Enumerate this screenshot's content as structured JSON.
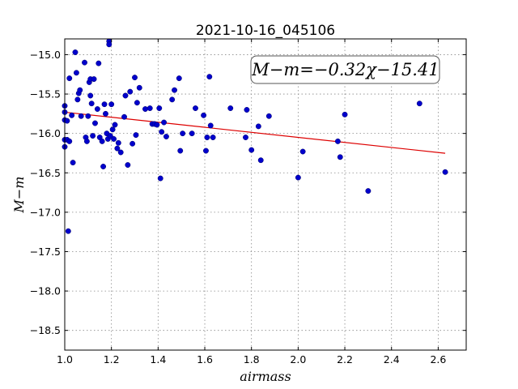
{
  "chart_data": {
    "type": "scatter",
    "title": "2021-10-16_045106",
    "xlabel": "airmass",
    "ylabel": "M−m",
    "xlim": [
      1.0,
      2.72
    ],
    "ylim": [
      -18.75,
      -14.8
    ],
    "y_inverted": true,
    "grid": true,
    "xticks": [
      1.0,
      1.2,
      1.4,
      1.6,
      1.8,
      2.0,
      2.2,
      2.4,
      2.6
    ],
    "xtick_labels": [
      "1.0",
      "1.2",
      "1.4",
      "1.6",
      "1.8",
      "2.0",
      "2.2",
      "2.4",
      "2.6"
    ],
    "yticks": [
      -15.0,
      -15.5,
      -16.0,
      -16.5,
      -17.0,
      -17.5,
      -18.0,
      -18.5
    ],
    "ytick_labels": [
      "−15.0",
      "−15.5",
      "−16.0",
      "−16.5",
      "−17.0",
      "−17.5",
      "−18.0",
      "−18.5"
    ],
    "annotation": "M−m=−0.32χ−15.41",
    "point_color": "#0000cc",
    "fit_color": "#dd0000",
    "fit": {
      "slope": -0.32,
      "intercept": -15.41,
      "x_range": [
        1.0,
        2.63
      ]
    },
    "points": [
      [
        1.0,
        -15.65
      ],
      [
        1.0,
        -15.73
      ],
      [
        1.0,
        -15.83
      ],
      [
        1.0,
        -16.08
      ],
      [
        1.0,
        -16.17
      ],
      [
        1.01,
        -15.84
      ],
      [
        1.01,
        -16.08
      ],
      [
        1.015,
        -17.24
      ],
      [
        1.02,
        -15.3
      ],
      [
        1.02,
        -16.1
      ],
      [
        1.03,
        -15.77
      ],
      [
        1.035,
        -16.37
      ],
      [
        1.045,
        -14.97
      ],
      [
        1.05,
        -15.23
      ],
      [
        1.055,
        -15.57
      ],
      [
        1.06,
        -15.49
      ],
      [
        1.065,
        -15.45
      ],
      [
        1.07,
        -15.78
      ],
      [
        1.085,
        -15.1
      ],
      [
        1.09,
        -16.05
      ],
      [
        1.095,
        -16.1
      ],
      [
        1.1,
        -15.78
      ],
      [
        1.105,
        -15.35
      ],
      [
        1.11,
        -15.31
      ],
      [
        1.11,
        -15.52
      ],
      [
        1.115,
        -15.62
      ],
      [
        1.12,
        -16.03
      ],
      [
        1.125,
        -15.31
      ],
      [
        1.13,
        -15.87
      ],
      [
        1.14,
        -15.69
      ],
      [
        1.145,
        -15.11
      ],
      [
        1.15,
        -16.05
      ],
      [
        1.16,
        -16.1
      ],
      [
        1.165,
        -16.42
      ],
      [
        1.17,
        -15.63
      ],
      [
        1.175,
        -15.75
      ],
      [
        1.18,
        -16.0
      ],
      [
        1.185,
        -16.07
      ],
      [
        1.19,
        -14.83
      ],
      [
        1.19,
        -14.87
      ],
      [
        1.195,
        -16.03
      ],
      [
        1.2,
        -15.63
      ],
      [
        1.205,
        -15.95
      ],
      [
        1.21,
        -16.07
      ],
      [
        1.215,
        -15.89
      ],
      [
        1.225,
        -16.19
      ],
      [
        1.23,
        -16.12
      ],
      [
        1.24,
        -16.24
      ],
      [
        1.255,
        -15.79
      ],
      [
        1.26,
        -15.52
      ],
      [
        1.27,
        -16.4
      ],
      [
        1.28,
        -15.47
      ],
      [
        1.29,
        -16.13
      ],
      [
        1.3,
        -15.29
      ],
      [
        1.305,
        -16.02
      ],
      [
        1.31,
        -15.61
      ],
      [
        1.32,
        -15.42
      ],
      [
        1.345,
        -15.69
      ],
      [
        1.365,
        -15.68
      ],
      [
        1.375,
        -15.88
      ],
      [
        1.385,
        -15.88
      ],
      [
        1.395,
        -15.89
      ],
      [
        1.405,
        -15.68
      ],
      [
        1.41,
        -16.57
      ],
      [
        1.415,
        -15.98
      ],
      [
        1.425,
        -15.86
      ],
      [
        1.435,
        -16.04
      ],
      [
        1.46,
        -15.57
      ],
      [
        1.47,
        -15.45
      ],
      [
        1.49,
        -15.3
      ],
      [
        1.495,
        -16.22
      ],
      [
        1.505,
        -16.0
      ],
      [
        1.545,
        -16.0
      ],
      [
        1.56,
        -15.68
      ],
      [
        1.595,
        -15.77
      ],
      [
        1.605,
        -16.22
      ],
      [
        1.61,
        -16.05
      ],
      [
        1.62,
        -15.28
      ],
      [
        1.625,
        -15.9
      ],
      [
        1.635,
        -16.05
      ],
      [
        1.71,
        -15.68
      ],
      [
        1.775,
        -16.05
      ],
      [
        1.78,
        -15.7
      ],
      [
        1.8,
        -16.21
      ],
      [
        1.83,
        -15.91
      ],
      [
        1.84,
        -16.34
      ],
      [
        1.875,
        -15.78
      ],
      [
        2.0,
        -16.56
      ],
      [
        2.02,
        -16.23
      ],
      [
        2.17,
        -16.1
      ],
      [
        2.18,
        -16.3
      ],
      [
        2.2,
        -15.76
      ],
      [
        2.3,
        -16.73
      ],
      [
        2.52,
        -15.62
      ],
      [
        2.63,
        -16.49
      ]
    ]
  }
}
